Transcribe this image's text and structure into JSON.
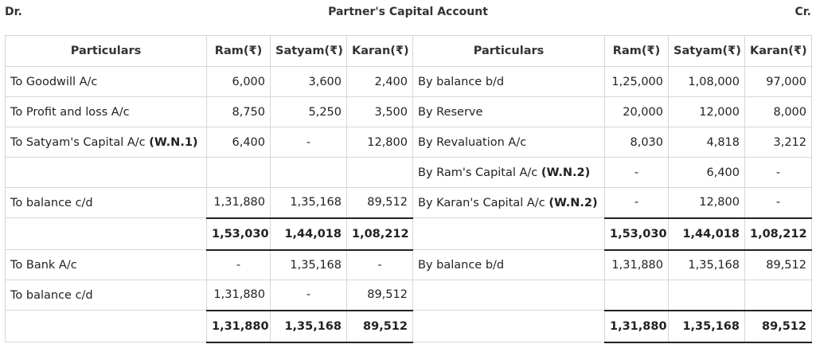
{
  "header": {
    "dr": "Dr.",
    "title": "Partner's Capital Account",
    "cr": "Cr."
  },
  "columns": {
    "particulars": "Particulars",
    "ram": "Ram(₹)",
    "satyam": "Satyam(₹)",
    "karan": "Karan(₹)"
  },
  "rows": [
    {
      "l": "To Goodwill A/c",
      "lwn": "",
      "lr": "6,000",
      "ls": "3,600",
      "lk": "2,400",
      "r": "By balance b/d",
      "rwn": "",
      "rr": "1,25,000",
      "rs": "1,08,000",
      "rk": "97,000"
    },
    {
      "l": "To Profit and loss A/c",
      "lwn": "",
      "lr": "8,750",
      "ls": "5,250",
      "lk": "3,500",
      "r": "By Reserve",
      "rwn": "",
      "rr": "20,000",
      "rs": "12,000",
      "rk": "8,000"
    },
    {
      "l": "To Satyam's Capital A/c ",
      "lwn": "(W.N.1)",
      "lr": "6,400",
      "ls": "-",
      "lk": "12,800",
      "r": "By Revaluation A/c",
      "rwn": "",
      "rr": "8,030",
      "rs": "4,818",
      "rk": "3,212"
    },
    {
      "l": "",
      "lwn": "",
      "lr": "",
      "ls": "",
      "lk": "",
      "r": "By Ram's Capital A/c ",
      "rwn": "(W.N.2)",
      "rr": "-",
      "rs": "6,400",
      "rk": "-"
    },
    {
      "l": "To balance c/d",
      "lwn": "",
      "lr": "1,31,880",
      "ls": "1,35,168",
      "lk": "89,512",
      "r": "By Karan's Capital A/c ",
      "rwn": "(W.N.2)",
      "rr": "-",
      "rs": "12,800",
      "rk": "-"
    },
    {
      "total": true,
      "lr": "1,53,030",
      "ls": "1,44,018",
      "lk": "1,08,212",
      "rr": "1,53,030",
      "rs": "1,44,018",
      "rk": "1,08,212"
    },
    {
      "l": "To Bank A/c",
      "lwn": "",
      "lr": "-",
      "ls": "1,35,168",
      "lk": "-",
      "r": "By balance b/d",
      "rwn": "",
      "rr": "1,31,880",
      "rs": "1,35,168",
      "rk": "89,512"
    },
    {
      "l": "To balance c/d",
      "lwn": "",
      "lr": "1,31,880",
      "ls": "-",
      "lk": "89,512",
      "r": "",
      "rwn": "",
      "rr": "",
      "rs": "",
      "rk": ""
    },
    {
      "total": true,
      "lr": "1,31,880",
      "ls": "1,35,168",
      "lk": "89,512",
      "rr": "1,31,880",
      "rs": "1,35,168",
      "rk": "89,512"
    }
  ]
}
